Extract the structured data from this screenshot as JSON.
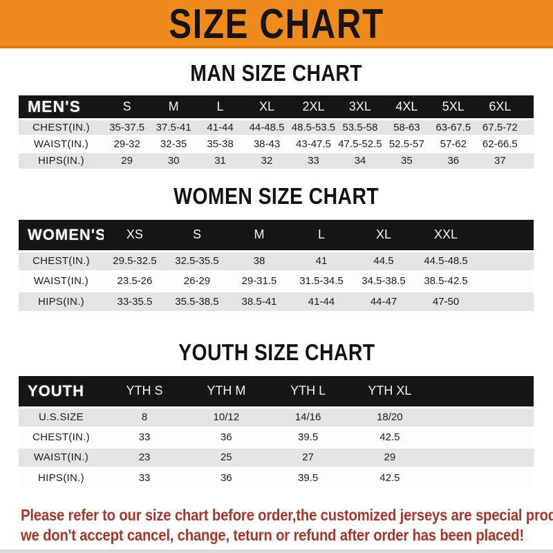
{
  "banner": {
    "title": "SIZE CHART"
  },
  "chart_data": [
    {
      "type": "table",
      "title": "MAN SIZE CHART",
      "header_label": "MEN'S",
      "columns": [
        "S",
        "M",
        "L",
        "XL",
        "2XL",
        "3XL",
        "4XL",
        "5XL",
        "6XL"
      ],
      "rows": [
        {
          "label": "CHEST(IN.)",
          "values": [
            "35-37.5",
            "37.5-41",
            "41-44",
            "44-48.5",
            "48.5-53.5",
            "53.5-58",
            "58-63",
            "63-67.5",
            "67.5-72"
          ]
        },
        {
          "label": "WAIST(IN.)",
          "values": [
            "29-32",
            "32-35",
            "35-38",
            "38-43",
            "43-47.5",
            "47.5-52.5",
            "52.5-57",
            "57-62",
            "62-66.5"
          ]
        },
        {
          "label": "HIPS(IN.)",
          "values": [
            "29",
            "30",
            "31",
            "32",
            "33",
            "34",
            "35",
            "36",
            "37"
          ]
        }
      ]
    },
    {
      "type": "table",
      "title": "WOMEN SIZE CHART",
      "header_label": "WOMEN'S",
      "columns": [
        "XS",
        "S",
        "M",
        "L",
        "XL",
        "XXL"
      ],
      "rows": [
        {
          "label": "CHEST(IN.)",
          "values": [
            "29.5-32.5",
            "32.5-35.5",
            "38",
            "41",
            "44.5",
            "44.5-48.5"
          ]
        },
        {
          "label": "WAIST(IN.)",
          "values": [
            "23.5-26",
            "26-29",
            "29-31.5",
            "31.5-34.5",
            "34.5-38.5",
            "38.5-42.5"
          ]
        },
        {
          "label": "HIPS(IN.)",
          "values": [
            "33-35.5",
            "35.5-38.5",
            "38.5-41",
            "41-44",
            "44-47",
            "47-50"
          ]
        }
      ]
    },
    {
      "type": "table",
      "title": "YOUTH SIZE CHART",
      "header_label": "YOUTH",
      "columns": [
        "YTH S",
        "YTH M",
        "YTH L",
        "YTH XL"
      ],
      "rows": [
        {
          "label": "U.S.SIZE",
          "values": [
            "8",
            "10/12",
            "14/16",
            "18/20"
          ]
        },
        {
          "label": "CHEST(IN.)",
          "values": [
            "33",
            "36",
            "39.5",
            "42.5"
          ]
        },
        {
          "label": "WAIST(IN.)",
          "values": [
            "23",
            "25",
            "27",
            "29"
          ]
        },
        {
          "label": "HIPS(IN.)",
          "values": [
            "33",
            "36",
            "39.5",
            "42.5"
          ]
        }
      ]
    }
  ],
  "footer": {
    "line1": "Please refer to our size chart before order,the customized jerseys are special products,",
    "line2": "we don't accept cancel, change, teturn or refund after order has been placed!"
  },
  "colors": {
    "banner_orange": "#EF8A1D",
    "banner_edge": "#D97911",
    "header_bar_black": "#161616",
    "row_stripe_gray": "#E4E4E4",
    "notice_red": "#A6352C"
  }
}
